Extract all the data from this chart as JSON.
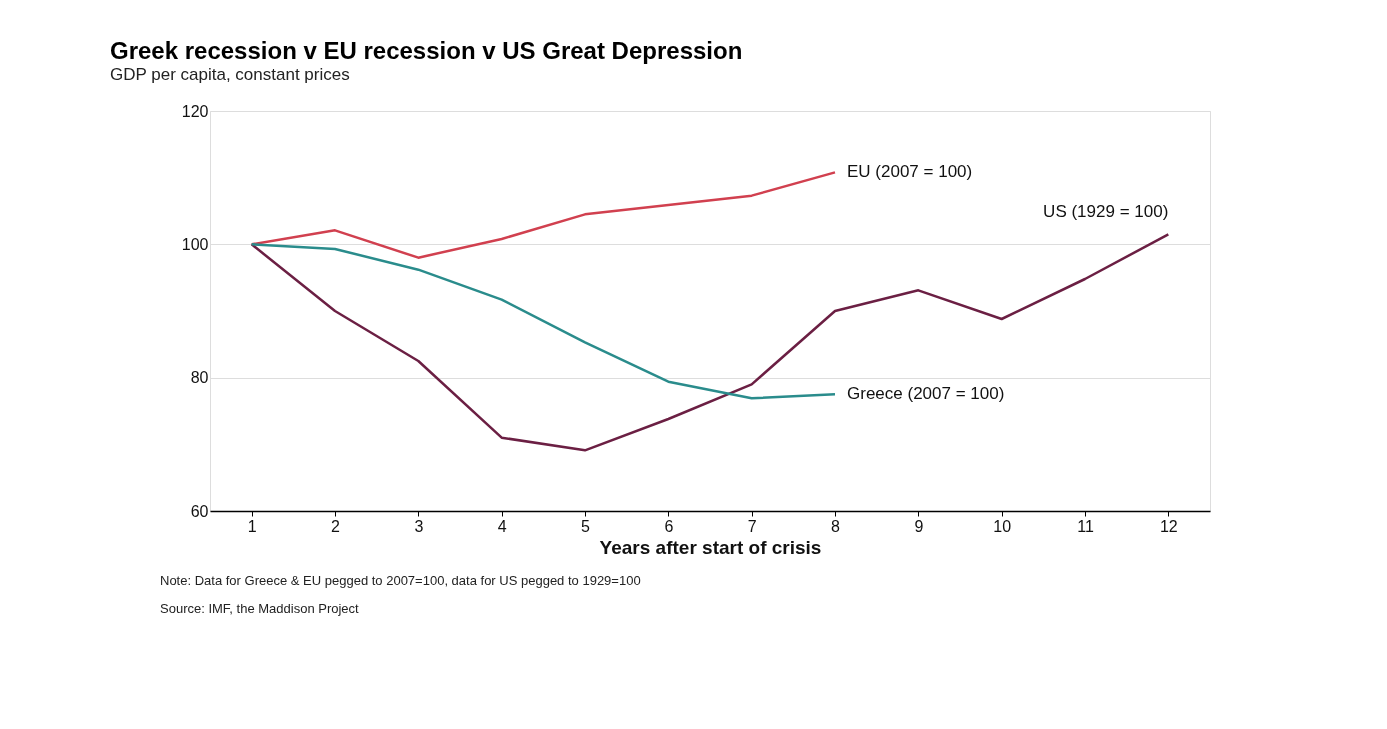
{
  "chart_data": {
    "type": "line",
    "title": "Greek recession v EU recession v US Great Depression",
    "subtitle": "GDP per capita, constant prices",
    "xlabel": "Years after start of crisis",
    "x": [
      1,
      2,
      3,
      4,
      5,
      6,
      7,
      8,
      9,
      10,
      11,
      12
    ],
    "series": [
      {
        "name": "EU (2007 = 100)",
        "color": "#d1404f",
        "values": [
          100,
          102.1,
          98.0,
          100.8,
          104.5,
          105.9,
          107.3,
          110.8,
          null,
          null,
          null,
          null
        ]
      },
      {
        "name": "US (1929 = 100)",
        "color": "#6b1f43",
        "values": [
          100,
          90,
          82.5,
          71.0,
          69.1,
          73.8,
          79.0,
          90,
          93.1,
          88.8,
          94.8,
          101.5
        ]
      },
      {
        "name": "Greece (2007 = 100)",
        "color": "#2a8c8c",
        "values": [
          100,
          99.3,
          96.2,
          91.7,
          85.3,
          79.4,
          76.9,
          77.5,
          null,
          null,
          null,
          null
        ]
      }
    ],
    "xlim": [
      0.5,
      12.5
    ],
    "xticks": [
      1,
      2,
      3,
      4,
      5,
      6,
      7,
      8,
      9,
      10,
      11,
      12
    ],
    "ylim": [
      60,
      120
    ],
    "yticks": [
      60,
      80,
      100,
      120
    ],
    "grid": "y",
    "legend": false,
    "line_style": "solid",
    "annotations": [
      "Note: Data for Greece & EU pegged to 2007=100, data for US pegged to 1929=100",
      "Source: IMF, the Maddison Project"
    ]
  }
}
